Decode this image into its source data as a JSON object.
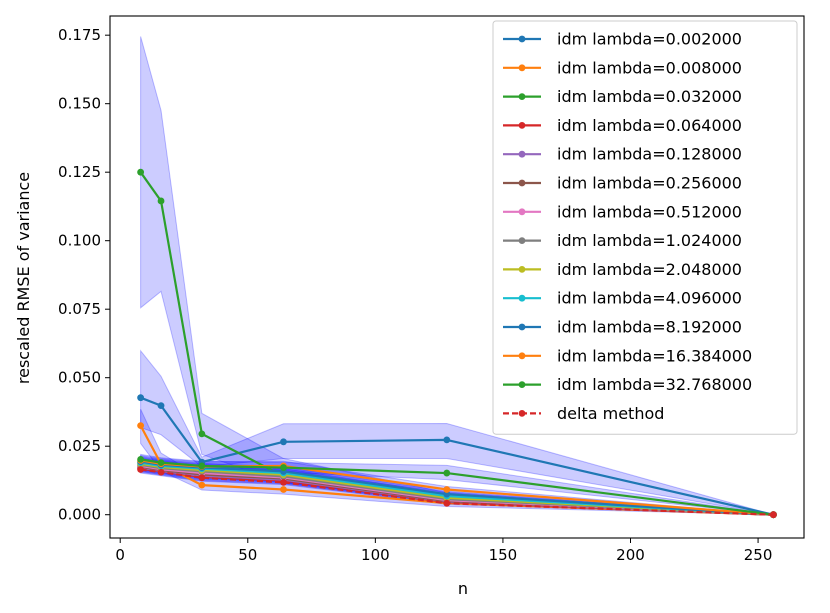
{
  "chart_data": {
    "type": "line",
    "xlabel": "n",
    "ylabel": "rescaled RMSE of variance",
    "xlim": [
      -4,
      268
    ],
    "ylim": [
      -0.0085,
      0.182
    ],
    "xticks": [
      0,
      50,
      100,
      150,
      200,
      250
    ],
    "yticks": [
      0.0,
      0.025,
      0.05,
      0.075,
      0.1,
      0.125,
      0.15,
      0.175
    ],
    "xtick_labels": [
      "0",
      "50",
      "100",
      "150",
      "200",
      "250"
    ],
    "ytick_labels": [
      "0.000",
      "0.025",
      "0.050",
      "0.075",
      "0.100",
      "0.125",
      "0.150",
      "0.175"
    ],
    "grid": false,
    "legend_position": "top-right",
    "x": [
      8,
      16,
      32,
      64,
      128,
      256
    ],
    "series": [
      {
        "name": "idm lambda=0.002000",
        "color": "#1f77b4",
        "style": "solid",
        "values": [
          0.0427,
          0.0398,
          0.0192,
          0.0266,
          0.0273,
          0.0
        ],
        "band_upper": [
          0.0598,
          0.0505,
          0.021,
          0.0332,
          0.0333,
          0.0
        ],
        "band_lower": [
          0.0318,
          0.0292,
          0.0175,
          0.0205,
          0.0205,
          0.0
        ]
      },
      {
        "name": "idm lambda=0.008000",
        "color": "#ff7f0e",
        "style": "solid",
        "values": [
          0.0325,
          0.0185,
          0.0108,
          0.0092,
          0.0042,
          0.0
        ],
        "band_upper": [
          0.0385,
          0.0225,
          0.0135,
          0.012,
          0.006,
          0.0
        ],
        "band_lower": [
          0.026,
          0.016,
          0.009,
          0.0075,
          0.003,
          0.0
        ]
      },
      {
        "name": "idm lambda=0.032000",
        "color": "#2ca02c",
        "style": "solid",
        "values": [
          0.125,
          0.1145,
          0.0295,
          0.014,
          0.0064,
          0.0
        ],
        "band_upper": [
          0.1745,
          0.1475,
          0.037,
          0.0205,
          0.008,
          0.0
        ],
        "band_lower": [
          0.0755,
          0.0815,
          0.022,
          0.0115,
          0.005,
          0.0
        ]
      },
      {
        "name": "idm lambda=0.064000",
        "color": "#d62728",
        "style": "solid",
        "values": [
          0.0168,
          0.0158,
          0.0138,
          0.0125,
          0.0046,
          0.0
        ],
        "band_upper": [
          0.0185,
          0.0175,
          0.0155,
          0.014,
          0.0055,
          0.0
        ],
        "band_lower": [
          0.0152,
          0.0142,
          0.0122,
          0.011,
          0.0038,
          0.0
        ]
      },
      {
        "name": "idm lambda=0.128000",
        "color": "#9467bd",
        "style": "solid",
        "values": [
          0.0172,
          0.016,
          0.0142,
          0.0128,
          0.0048,
          0.0
        ],
        "band_upper": [
          0.019,
          0.0178,
          0.0158,
          0.0143,
          0.0057,
          0.0
        ],
        "band_lower": [
          0.0155,
          0.0145,
          0.0125,
          0.0113,
          0.004,
          0.0
        ]
      },
      {
        "name": "idm lambda=0.256000",
        "color": "#8c564b",
        "style": "solid",
        "values": [
          0.0175,
          0.0163,
          0.0147,
          0.0132,
          0.005,
          0.0
        ],
        "band_upper": [
          0.0193,
          0.0181,
          0.0163,
          0.0147,
          0.006,
          0.0
        ],
        "band_lower": [
          0.0158,
          0.0147,
          0.013,
          0.0117,
          0.0042,
          0.0
        ]
      },
      {
        "name": "idm lambda=0.512000",
        "color": "#e377c2",
        "style": "solid",
        "values": [
          0.0178,
          0.0166,
          0.0152,
          0.0136,
          0.0053,
          0.0
        ],
        "band_upper": [
          0.0196,
          0.0184,
          0.0168,
          0.0151,
          0.0063,
          0.0
        ],
        "band_lower": [
          0.016,
          0.015,
          0.0135,
          0.0121,
          0.0044,
          0.0
        ]
      },
      {
        "name": "idm lambda=1.024000",
        "color": "#7f7f7f",
        "style": "solid",
        "values": [
          0.0182,
          0.017,
          0.0158,
          0.014,
          0.0057,
          0.0
        ],
        "band_upper": [
          0.02,
          0.0188,
          0.0174,
          0.0156,
          0.0067,
          0.0
        ],
        "band_lower": [
          0.0164,
          0.0153,
          0.0141,
          0.0125,
          0.0048,
          0.0
        ]
      },
      {
        "name": "idm lambda=2.048000",
        "color": "#bcbd22",
        "style": "solid",
        "values": [
          0.0186,
          0.0174,
          0.0163,
          0.0146,
          0.0062,
          0.0
        ],
        "band_upper": [
          0.0204,
          0.0192,
          0.0179,
          0.0162,
          0.0072,
          0.0
        ],
        "band_lower": [
          0.0168,
          0.0157,
          0.0146,
          0.013,
          0.0052,
          0.0
        ]
      },
      {
        "name": "idm lambda=4.096000",
        "color": "#17becf",
        "style": "solid",
        "values": [
          0.019,
          0.0178,
          0.0168,
          0.0152,
          0.0068,
          0.0
        ],
        "band_upper": [
          0.0208,
          0.0196,
          0.0184,
          0.0168,
          0.0078,
          0.0
        ],
        "band_lower": [
          0.0172,
          0.0161,
          0.0151,
          0.0136,
          0.0058,
          0.0
        ]
      },
      {
        "name": "idm lambda=8.192000",
        "color": "#1f77b4",
        "style": "solid",
        "values": [
          0.0194,
          0.0182,
          0.0172,
          0.0158,
          0.0075,
          0.0
        ],
        "band_upper": [
          0.0212,
          0.02,
          0.0188,
          0.0174,
          0.0085,
          0.0
        ],
        "band_lower": [
          0.0176,
          0.0165,
          0.0155,
          0.0142,
          0.0065,
          0.0
        ]
      },
      {
        "name": "idm lambda=16.384000",
        "color": "#ff7f0e",
        "style": "solid",
        "values": [
          0.0198,
          0.0186,
          0.0176,
          0.0178,
          0.0092,
          0.0
        ],
        "band_upper": [
          0.0216,
          0.0204,
          0.0193,
          0.0195,
          0.0103,
          0.0
        ],
        "band_lower": [
          0.018,
          0.0169,
          0.0159,
          0.0161,
          0.0081,
          0.0
        ]
      },
      {
        "name": "idm lambda=32.768000",
        "color": "#2ca02c",
        "style": "solid",
        "values": [
          0.0202,
          0.019,
          0.0178,
          0.0172,
          0.0152,
          0.0
        ],
        "band_upper": [
          0.022,
          0.0208,
          0.0195,
          0.019,
          0.018,
          0.0
        ],
        "band_lower": [
          0.0184,
          0.0173,
          0.0161,
          0.0155,
          0.0128,
          0.0
        ]
      },
      {
        "name": "delta method",
        "color": "#d62728",
        "style": "dashed",
        "values": [
          0.0165,
          0.0155,
          0.0135,
          0.0118,
          0.0042,
          0.0
        ]
      }
    ],
    "band_color": "#0000ff"
  }
}
